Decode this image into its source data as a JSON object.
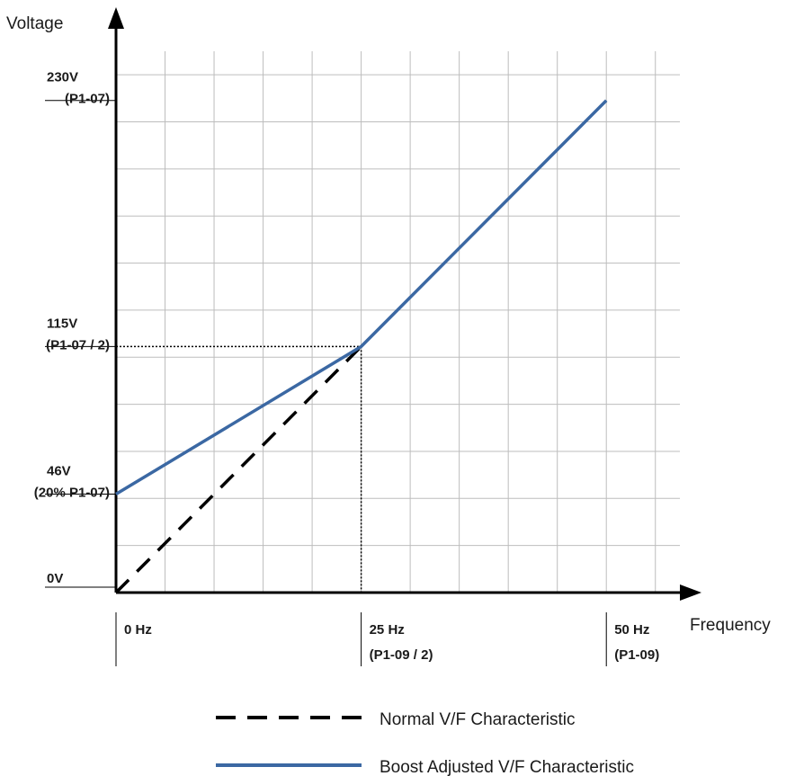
{
  "chart_data": {
    "type": "line",
    "xlabel": "Frequency",
    "ylabel": "Voltage",
    "xlim": [
      0,
      57.5
    ],
    "ylim": [
      0,
      253
    ],
    "grid": true,
    "legend_position": "bottom",
    "x_ticks": [
      {
        "value": 0,
        "line1": "0 Hz",
        "line2": ""
      },
      {
        "value": 25,
        "line1": "25 Hz",
        "line2": "(P1-09 / 2)"
      },
      {
        "value": 50,
        "line1": "50 Hz",
        "line2": "(P1-09)"
      }
    ],
    "y_ticks": [
      {
        "value": 0,
        "line1": "0V",
        "line2": ""
      },
      {
        "value": 46,
        "line1": "46V",
        "line2": "(20% P1-07)"
      },
      {
        "value": 115,
        "line1": "115V",
        "line2": "(P1-07 / 2)"
      },
      {
        "value": 230,
        "line1": "230V",
        "line2": "(P1-07)"
      }
    ],
    "series": [
      {
        "name": "Normal V/F Characteristic",
        "style": "dashed",
        "color": "#000000",
        "x": [
          0,
          25
        ],
        "y": [
          0,
          115
        ]
      },
      {
        "name": "Boost Adjusted V/F Characteristic",
        "style": "solid",
        "color": "#3b68a3",
        "x": [
          0,
          25,
          50
        ],
        "y": [
          46,
          115,
          230
        ]
      }
    ],
    "reference_point": {
      "x": 25,
      "y": 115
    }
  }
}
